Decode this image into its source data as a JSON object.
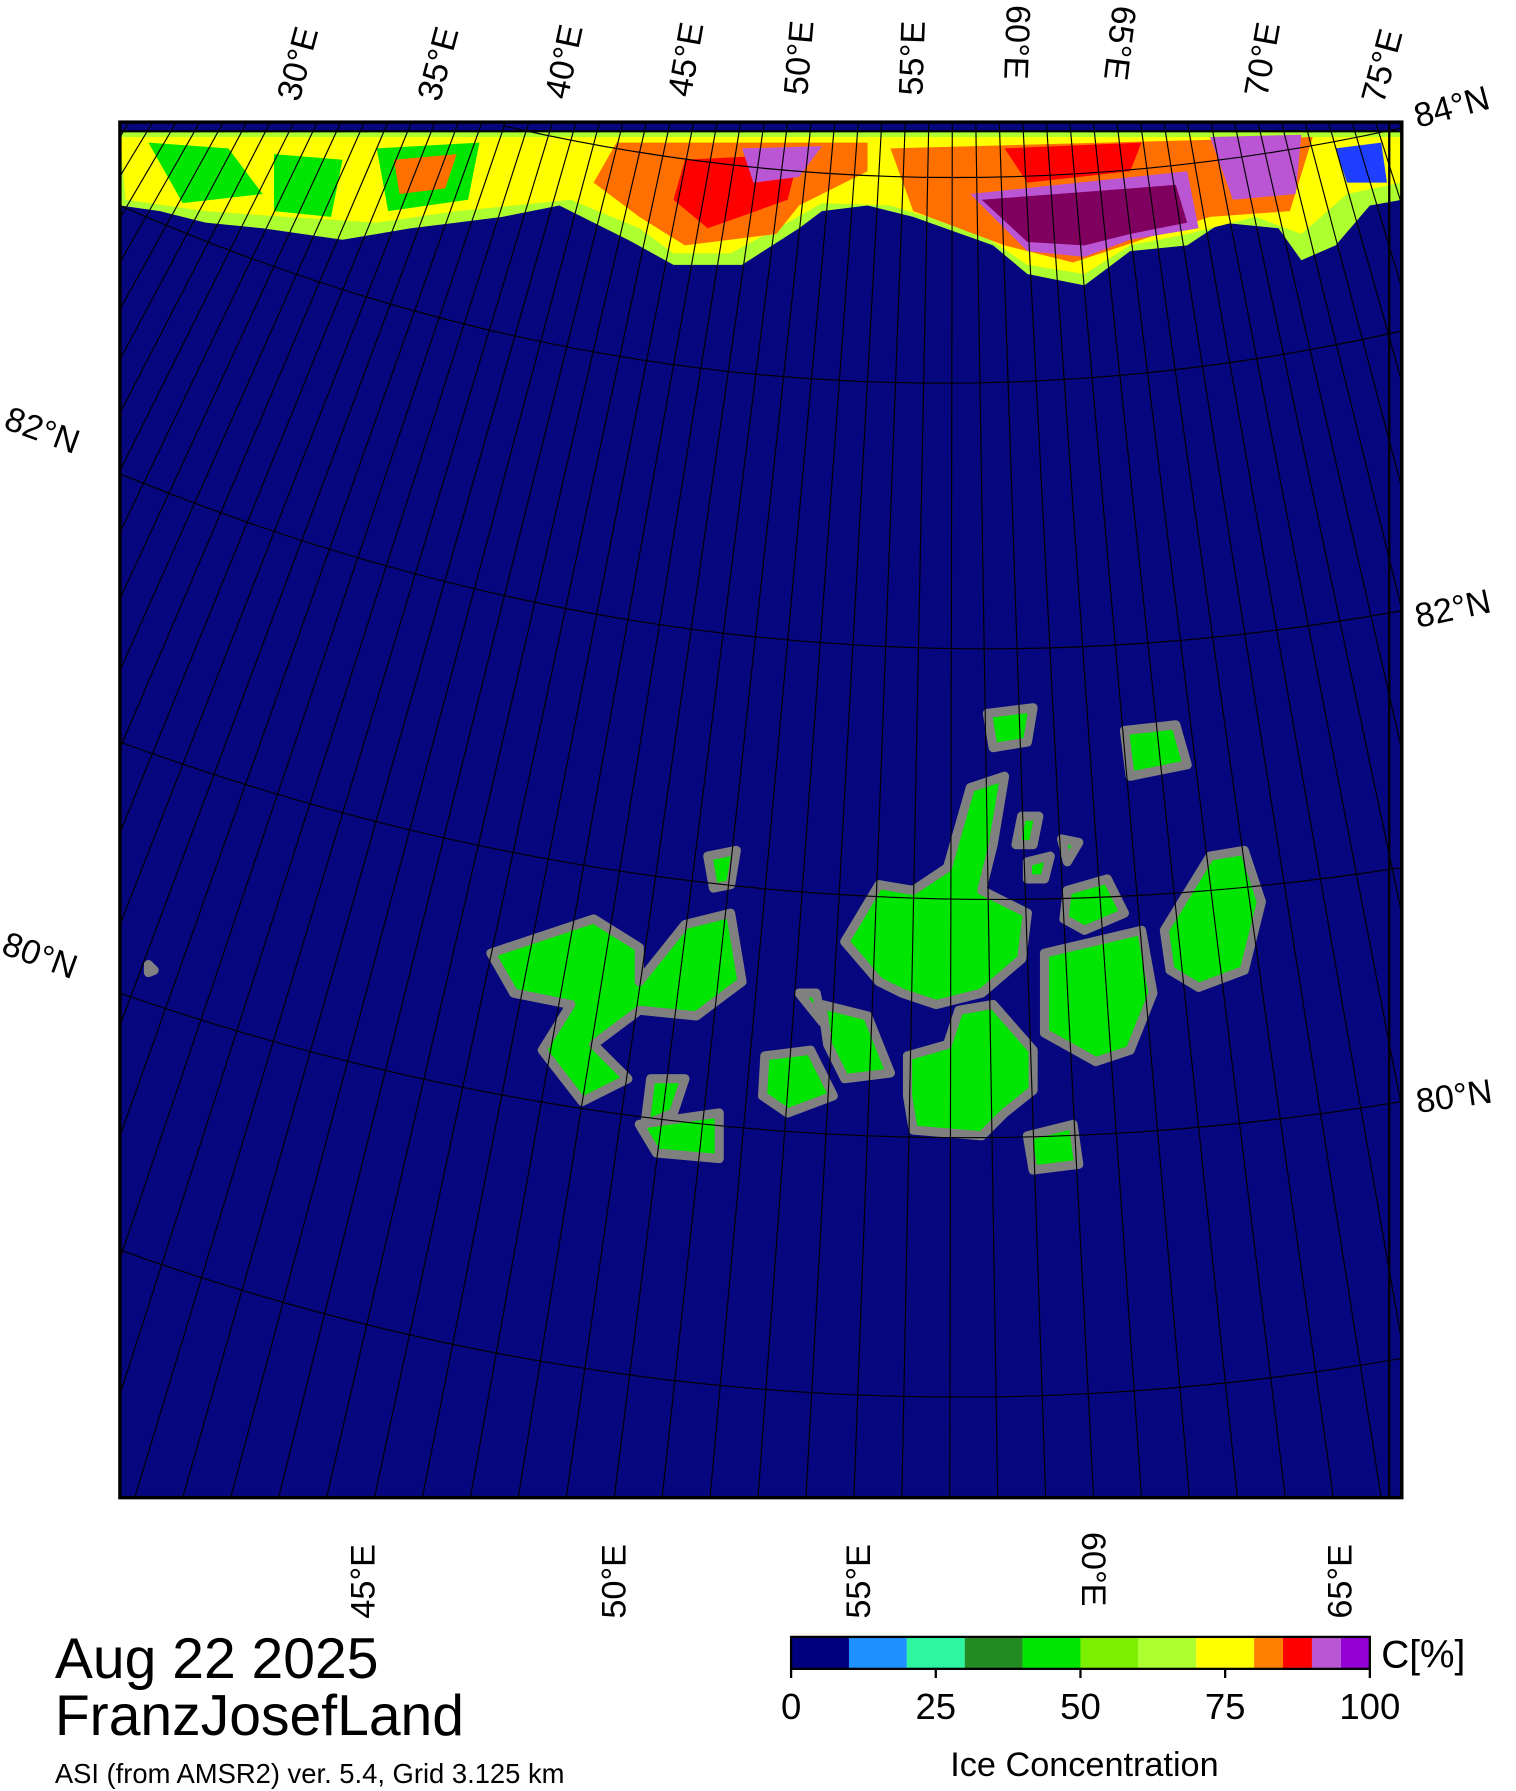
{
  "map": {
    "top_lon_labels": [
      "30°E",
      "35°E",
      "40°E",
      "45°E",
      "50°E",
      "55°E",
      "60°E",
      "65°E",
      "70°E",
      "75°E"
    ],
    "top_lat_label": "84°N",
    "left_lat_labels": [
      "82°N",
      "80°N"
    ],
    "right_lat_labels": [
      "82°N",
      "80°N"
    ],
    "bottom_lon_labels": [
      "45°E",
      "50°E",
      "55°E",
      "60°E",
      "65°E"
    ]
  },
  "caption": {
    "date": "Aug 22 2025",
    "region": "FranzJosefLand",
    "source": "ASI (from AMSR2) ver. 5.4,  Grid 3.125 km"
  },
  "colorbar": {
    "unit_label": "C[%]",
    "title": "Ice Concentration",
    "range": [
      0,
      100
    ],
    "ticks": [
      0,
      25,
      50,
      75,
      100
    ],
    "bounds": [
      0,
      10,
      20,
      30,
      40,
      50,
      60,
      70,
      80,
      85,
      90,
      95,
      100
    ],
    "colors": [
      "#00007f",
      "#1e90ff",
      "#2ef5a0",
      "#228b22",
      "#00e600",
      "#7cf000",
      "#adff2f",
      "#ffff00",
      "#ff8000",
      "#ff0000",
      "#ba55d3",
      "#9400d3"
    ]
  }
}
